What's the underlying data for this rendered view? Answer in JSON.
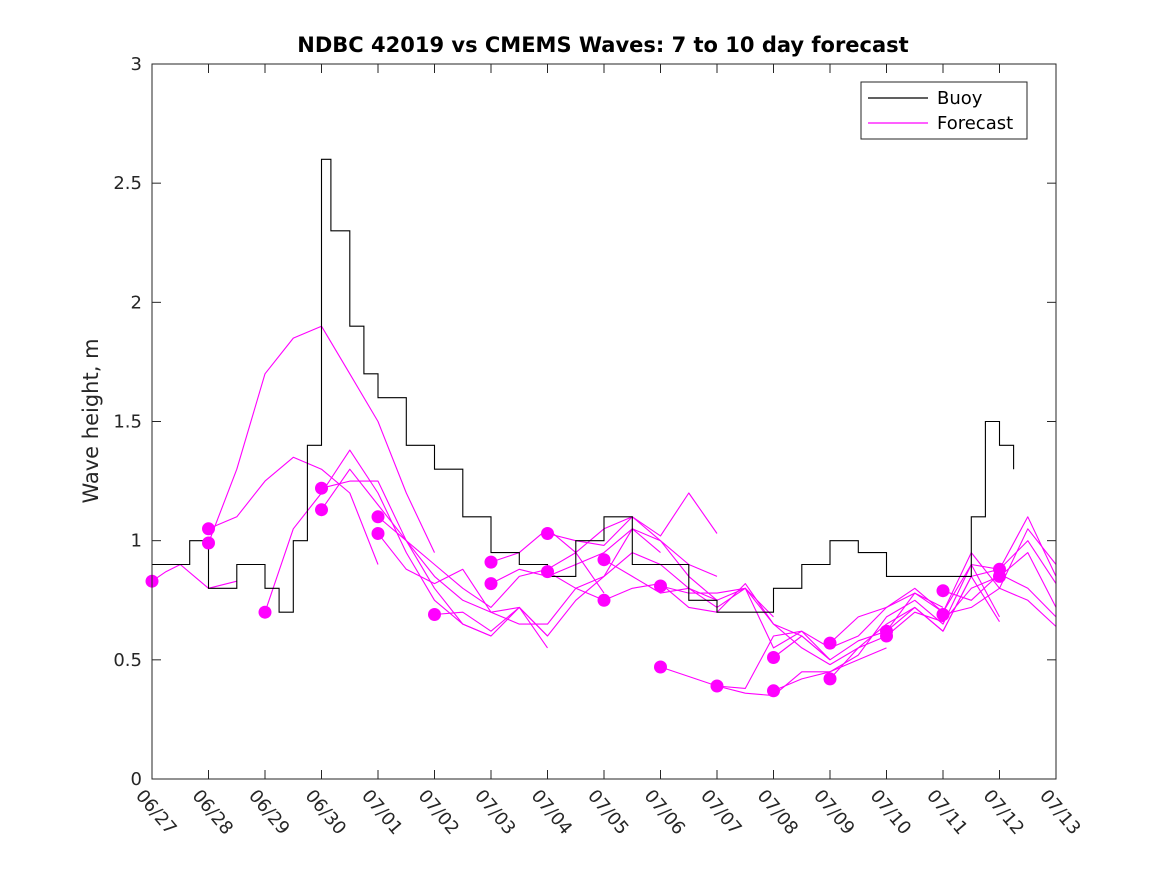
{
  "chart_data": {
    "type": "line",
    "title": "NDBC 42019 vs CMEMS Waves: 7 to 10 day forecast",
    "xlabel": "",
    "ylabel": "Wave height, m",
    "ylim": [
      0,
      3
    ],
    "yticks": [
      "0",
      "0.5",
      "1",
      "1.5",
      "2",
      "2.5",
      "3"
    ],
    "xlim": [
      "06/27",
      "07/13"
    ],
    "xticks": [
      "06/27",
      "06/28",
      "06/29",
      "06/30",
      "07/01",
      "07/02",
      "07/03",
      "07/04",
      "07/05",
      "07/06",
      "07/07",
      "07/08",
      "07/09",
      "07/10",
      "07/11",
      "07/12",
      "07/13"
    ],
    "grid": false,
    "legend": {
      "placement": "top-right",
      "entries": [
        "Buoy",
        "Forecast"
      ]
    },
    "colors": {
      "buoy": "#000000",
      "forecast": "#ff00ff"
    },
    "buoy": {
      "name": "Buoy",
      "x": [
        "06/27",
        "06/27 12:00",
        "06/27 16:00",
        "06/28",
        "06/28 12:00",
        "06/29",
        "06/29 06:00",
        "06/29 12:00",
        "06/29 18:00",
        "06/30",
        "06/30 04:00",
        "06/30 12:00",
        "06/30 18:00",
        "07/01",
        "07/01 12:00",
        "07/02",
        "07/02 12:00",
        "07/03",
        "07/03 12:00",
        "07/04",
        "07/04 12:00",
        "07/05",
        "07/05 12:00",
        "07/06",
        "07/06 12:00",
        "07/07",
        "07/07 12:00",
        "07/08",
        "07/08 12:00",
        "07/09",
        "07/09 12:00",
        "07/10",
        "07/10 12:00",
        "07/11",
        "07/11 12:00",
        "07/11 18:00",
        "07/12",
        "07/12 06:00"
      ],
      "y": [
        0.9,
        0.9,
        1.0,
        0.8,
        0.9,
        0.8,
        0.7,
        1.0,
        1.4,
        2.6,
        2.3,
        1.9,
        1.7,
        1.6,
        1.4,
        1.3,
        1.1,
        0.95,
        0.9,
        0.85,
        1.0,
        1.1,
        0.9,
        0.9,
        0.75,
        0.7,
        0.7,
        0.8,
        0.9,
        1.0,
        0.95,
        0.85,
        0.85,
        0.85,
        1.1,
        1.5,
        1.4,
        1.3
      ]
    },
    "forecast": {
      "name": "Forecast",
      "runs": [
        {
          "x": [
            "06/27",
            "06/27 06:00",
            "06/27 12:00",
            "06/27 18:00",
            "06/28",
            "06/28 12:00"
          ],
          "y": [
            0.83,
            0.87,
            0.9,
            0.85,
            0.8,
            0.83
          ]
        },
        {
          "x": [
            "06/28",
            "06/28 12:00",
            "06/29",
            "06/29 12:00",
            "06/30",
            "06/30 12:00",
            "07/01"
          ],
          "y": [
            1.05,
            1.1,
            1.25,
            1.35,
            1.3,
            1.2,
            0.9
          ]
        },
        {
          "x": [
            "06/28",
            "06/28 12:00",
            "06/29",
            "06/29 12:00",
            "06/30",
            "06/30 12:00",
            "07/01",
            "07/01 12:00",
            "07/02"
          ],
          "y": [
            0.99,
            1.3,
            1.7,
            1.85,
            1.9,
            1.7,
            1.5,
            1.2,
            0.95
          ]
        },
        {
          "x": [
            "06/29",
            "06/29 12:00",
            "06/30",
            "06/30 12:00",
            "07/01",
            "07/01 12:00",
            "07/02",
            "07/02 12:00",
            "07/03"
          ],
          "y": [
            0.7,
            1.05,
            1.2,
            1.38,
            1.2,
            0.95,
            0.75,
            0.65,
            0.6
          ]
        },
        {
          "x": [
            "06/30",
            "06/30 12:00",
            "07/01",
            "07/01 12:00",
            "07/02",
            "07/02 12:00",
            "07/03",
            "07/03 12:00",
            "07/04"
          ],
          "y": [
            1.22,
            1.25,
            1.25,
            1.0,
            0.85,
            0.75,
            0.7,
            0.72,
            0.6
          ]
        },
        {
          "x": [
            "06/30",
            "06/30 12:00",
            "07/01",
            "07/01 12:00",
            "07/02",
            "07/02 12:00",
            "07/03",
            "07/03 12:00",
            "07/04"
          ],
          "y": [
            1.13,
            1.3,
            1.15,
            1.0,
            0.8,
            0.65,
            0.6,
            0.72,
            0.55
          ]
        },
        {
          "x": [
            "07/01",
            "07/01 12:00",
            "07/02",
            "07/02 12:00",
            "07/03",
            "07/03 12:00",
            "07/04",
            "07/04 12:00",
            "07/05"
          ],
          "y": [
            1.1,
            1.0,
            0.9,
            0.8,
            0.72,
            0.85,
            0.88,
            0.95,
            0.78
          ]
        },
        {
          "x": [
            "07/01",
            "07/01 12:00",
            "07/02",
            "07/02 12:00",
            "07/03",
            "07/03 12:00",
            "07/04",
            "07/04 12:00",
            "07/05"
          ],
          "y": [
            1.03,
            0.88,
            0.82,
            0.88,
            0.7,
            0.65,
            0.65,
            0.8,
            0.75
          ]
        },
        {
          "x": [
            "07/02",
            "07/02 12:00",
            "07/03",
            "07/03 12:00",
            "07/04",
            "07/04 12:00",
            "07/05",
            "07/05 12:00",
            "07/06"
          ],
          "y": [
            0.69,
            0.7,
            0.62,
            0.72,
            0.6,
            0.75,
            0.85,
            1.05,
            0.95
          ]
        },
        {
          "x": [
            "07/03",
            "07/03 12:00",
            "07/04",
            "07/04 12:00",
            "07/05",
            "07/05 12:00",
            "07/06",
            "07/06 12:00",
            "07/07"
          ],
          "y": [
            0.91,
            0.95,
            1.05,
            0.95,
            1.05,
            1.1,
            1.0,
            0.9,
            0.85
          ]
        },
        {
          "x": [
            "07/03",
            "07/03 12:00",
            "07/04",
            "07/04 12:00",
            "07/05",
            "07/05 12:00",
            "07/06",
            "07/06 12:00",
            "07/07"
          ],
          "y": [
            0.82,
            0.88,
            0.85,
            0.9,
            0.95,
            1.05,
            1.0,
            0.85,
            0.75
          ]
        },
        {
          "x": [
            "07/04",
            "07/04 12:00",
            "07/05",
            "07/05 12:00",
            "07/06",
            "07/06 12:00",
            "07/07"
          ],
          "y": [
            1.03,
            1.0,
            0.98,
            1.1,
            1.02,
            1.2,
            1.03
          ]
        },
        {
          "x": [
            "07/04",
            "07/04 12:00",
            "07/05",
            "07/05 12:00",
            "07/06",
            "07/06 12:00",
            "07/07",
            "07/07 12:00",
            "07/08"
          ],
          "y": [
            0.87,
            0.8,
            0.85,
            0.95,
            0.9,
            0.8,
            0.75,
            0.8,
            0.68
          ]
        },
        {
          "x": [
            "07/05",
            "07/05 12:00",
            "07/06",
            "07/06 12:00",
            "07/07",
            "07/07 12:00",
            "07/08",
            "07/08 12:00",
            "07/09"
          ],
          "y": [
            0.92,
            0.85,
            0.78,
            0.8,
            0.72,
            0.8,
            0.55,
            0.62,
            0.5
          ]
        },
        {
          "x": [
            "07/05",
            "07/05 12:00",
            "07/06",
            "07/06 12:00",
            "07/07",
            "07/07 12:00",
            "07/08",
            "07/08 12:00",
            "07/09"
          ],
          "y": [
            0.75,
            0.8,
            0.82,
            0.72,
            0.7,
            0.82,
            0.65,
            0.6,
            0.5
          ]
        },
        {
          "x": [
            "07/06",
            "07/06 12:00",
            "07/07",
            "07/07 12:00",
            "07/08",
            "07/08 12:00",
            "07/09",
            "07/09 12:00",
            "07/10"
          ],
          "y": [
            0.81,
            0.78,
            0.78,
            0.8,
            0.65,
            0.55,
            0.48,
            0.55,
            0.6
          ]
        },
        {
          "x": [
            "07/06",
            "07/06 12:00",
            "07/07",
            "07/07 12:00",
            "07/08",
            "07/08 12:00",
            "07/09",
            "07/09 12:00",
            "07/10"
          ],
          "y": [
            0.47,
            0.43,
            0.39,
            0.36,
            0.35,
            0.45,
            0.45,
            0.5,
            0.55
          ]
        },
        {
          "x": [
            "07/07",
            "07/07 12:00",
            "07/08",
            "07/08 12:00",
            "07/09",
            "07/09 12:00",
            "07/10",
            "07/10 12:00",
            "07/11"
          ],
          "y": [
            0.39,
            0.38,
            0.6,
            0.62,
            0.55,
            0.6,
            0.72,
            0.78,
            0.72
          ]
        },
        {
          "x": [
            "07/08",
            "07/08 12:00",
            "07/09",
            "07/09 12:00",
            "07/10",
            "07/10 12:00",
            "07/11",
            "07/11 12:00",
            "07/12"
          ],
          "y": [
            0.51,
            0.6,
            0.5,
            0.58,
            0.62,
            0.72,
            0.62,
            0.85,
            0.66
          ]
        },
        {
          "x": [
            "07/08",
            "07/08 12:00",
            "07/09",
            "07/09 12:00",
            "07/10",
            "07/10 12:00",
            "07/11",
            "07/11 12:00",
            "07/12"
          ],
          "y": [
            0.37,
            0.42,
            0.45,
            0.52,
            0.68,
            0.75,
            0.65,
            0.9,
            0.68
          ]
        },
        {
          "x": [
            "07/09",
            "07/09 12:00",
            "07/10",
            "07/10 12:00",
            "07/11",
            "07/11 12:00",
            "07/12",
            "07/12 12:00",
            "07/13"
          ],
          "y": [
            0.57,
            0.68,
            0.72,
            0.8,
            0.7,
            0.95,
            0.8,
            1.05,
            0.9
          ]
        },
        {
          "x": [
            "07/09",
            "07/09 12:00",
            "07/10",
            "07/10 12:00",
            "07/11",
            "07/11 12:00",
            "07/12",
            "07/12 12:00",
            "07/13"
          ],
          "y": [
            0.42,
            0.55,
            0.65,
            0.72,
            0.62,
            0.85,
            0.88,
            1.1,
            0.85
          ]
        },
        {
          "x": [
            "07/10",
            "07/10 12:00",
            "07/11",
            "07/11 12:00",
            "07/12",
            "07/12 12:00",
            "07/13"
          ],
          "y": [
            0.62,
            0.78,
            0.7,
            0.9,
            0.88,
            1.0,
            0.82
          ]
        },
        {
          "x": [
            "07/10",
            "07/10 12:00",
            "07/11",
            "07/11 12:00",
            "07/12",
            "07/12 12:00",
            "07/13"
          ],
          "y": [
            0.6,
            0.7,
            0.66,
            0.8,
            0.85,
            0.95,
            0.72
          ]
        },
        {
          "x": [
            "07/11",
            "07/11 12:00",
            "07/12",
            "07/12 12:00",
            "07/13"
          ],
          "y": [
            0.79,
            0.75,
            0.86,
            0.8,
            0.68
          ]
        },
        {
          "x": [
            "07/11",
            "07/11 12:00",
            "07/12",
            "07/12 12:00",
            "07/13"
          ],
          "y": [
            0.69,
            0.72,
            0.8,
            0.75,
            0.64
          ]
        }
      ],
      "markers": {
        "x": [
          "06/27",
          "06/28",
          "06/28",
          "06/29",
          "06/30",
          "06/30",
          "07/01",
          "07/01",
          "07/02",
          "07/03",
          "07/03",
          "07/04",
          "07/04",
          "07/05",
          "07/05",
          "07/06",
          "07/06",
          "07/07",
          "07/08",
          "07/08",
          "07/09",
          "07/09",
          "07/10",
          "07/10",
          "07/11",
          "07/11",
          "07/12",
          "07/12"
        ],
        "y": [
          0.83,
          1.05,
          0.99,
          0.7,
          1.22,
          1.13,
          1.1,
          1.03,
          0.69,
          0.91,
          0.82,
          1.03,
          0.87,
          0.92,
          0.75,
          0.81,
          0.47,
          0.39,
          0.51,
          0.37,
          0.57,
          0.42,
          0.62,
          0.6,
          0.79,
          0.69,
          0.88,
          0.85
        ]
      }
    }
  }
}
